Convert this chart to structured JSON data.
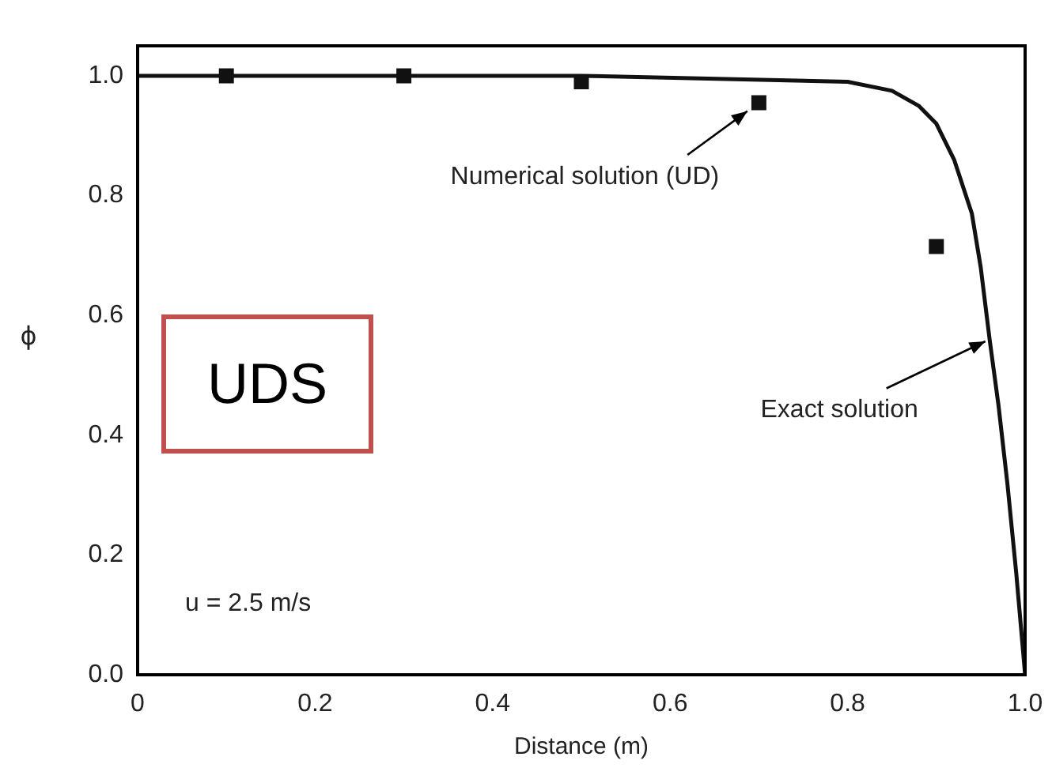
{
  "chart_data": {
    "type": "line",
    "xlabel": "Distance (m)",
    "ylabel": "ϕ",
    "xlim": [
      0,
      1
    ],
    "ylim": [
      0,
      1.05
    ],
    "xticks": [
      0,
      {
        "value": 0.2,
        "label": "0.2"
      },
      {
        "value": 0.4,
        "label": "0.4"
      },
      {
        "value": 0.6,
        "label": "0.6"
      },
      {
        "value": 0.8,
        "label": "0.8"
      },
      {
        "value": 1,
        "label": "1.0"
      }
    ],
    "yticks": [
      {
        "value": 0,
        "label": "0.0"
      },
      {
        "value": 0.2,
        "label": "0.2"
      },
      {
        "value": 0.4,
        "label": "0.4"
      },
      {
        "value": 0.6,
        "label": "0.6"
      },
      {
        "value": 0.8,
        "label": "0.8"
      },
      {
        "value": 1,
        "label": "1.0"
      }
    ],
    "grid": false,
    "legend": false,
    "series": [
      {
        "color": "#111111",
        "marker": "none",
        "line_style": "solid",
        "x": [
          0,
          0.5,
          0.8,
          0.85,
          0.88,
          0.9,
          0.92,
          0.94,
          0.95,
          0.96,
          0.97,
          0.98,
          0.99,
          1.0
        ],
        "values": [
          1,
          1,
          0.99,
          0.975,
          0.95,
          0.92,
          0.86,
          0.77,
          0.68,
          0.56,
          0.45,
          0.32,
          0.17,
          0
        ]
      },
      {
        "type": "scatter",
        "color": "#111111",
        "marker": "square",
        "x": [
          0.1,
          0.3,
          0.5,
          0.7,
          0.9
        ],
        "values": [
          1.0,
          1.0,
          0.99,
          0.955,
          0.715
        ]
      }
    ],
    "annotations": [
      {
        "text": "Numerical solution (UD)",
        "x": 0.7,
        "y": 0.955
      },
      {
        "text": "Exact solution",
        "x": 0.96,
        "y": 0.56
      },
      "u = 2.5 m/s",
      "UDS"
    ]
  }
}
